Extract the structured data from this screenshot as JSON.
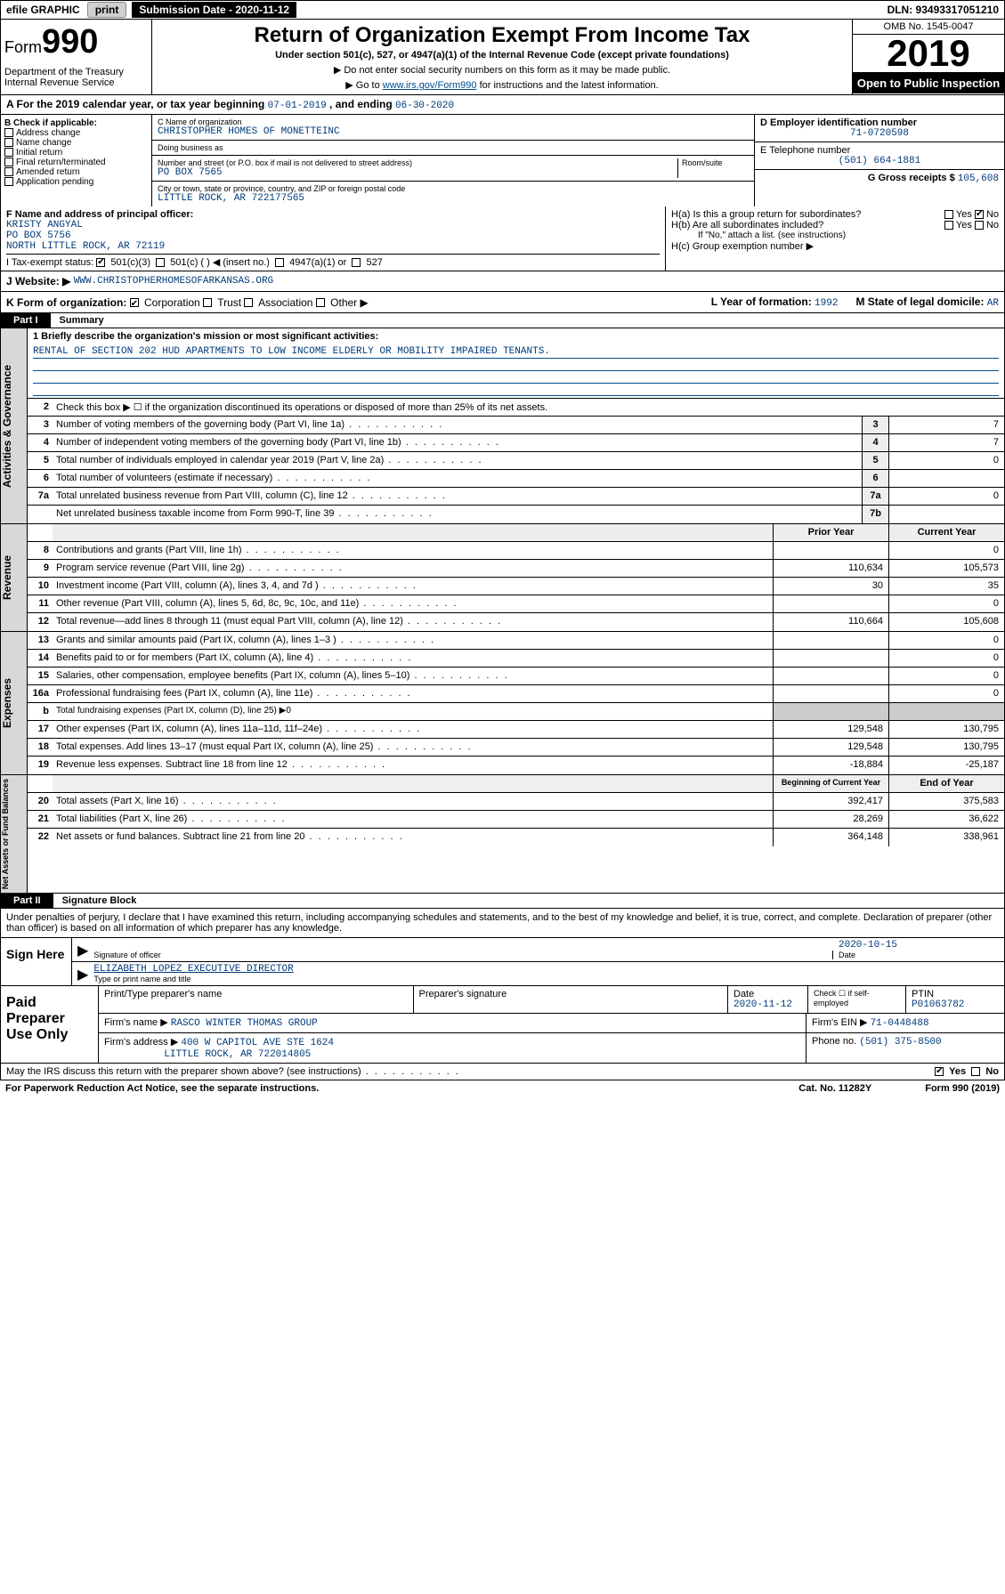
{
  "topbar": {
    "efile": "efile GRAPHIC",
    "print": "print",
    "submission": "Submission Date - 2020-11-12",
    "dln": "DLN: 93493317051210"
  },
  "header": {
    "form_prefix": "Form",
    "form_number": "990",
    "title": "Return of Organization Exempt From Income Tax",
    "subtitle": "Under section 501(c), 527, or 4947(a)(1) of the Internal Revenue Code (except private foundations)",
    "note1": "▶ Do not enter social security numbers on this form as it may be made public.",
    "note2_pre": "▶ Go to ",
    "note2_link": "www.irs.gov/Form990",
    "note2_post": " for instructions and the latest information.",
    "dept": "Department of the Treasury\nInternal Revenue Service",
    "omb": "OMB No. 1545-0047",
    "year": "2019",
    "open": "Open to Public Inspection"
  },
  "rowA": {
    "text_pre": "A For the 2019 calendar year, or tax year beginning ",
    "begin": "07-01-2019",
    "mid": " , and ending ",
    "end": "06-30-2020"
  },
  "colB": {
    "label": "B Check if applicable:",
    "opts": [
      "Address change",
      "Name change",
      "Initial return",
      "Final return/terminated",
      "Amended return",
      "Application pending"
    ]
  },
  "colC": {
    "name_lbl": "C Name of organization",
    "name": "CHRISTOPHER HOMES OF MONETTEINC",
    "dba_lbl": "Doing business as",
    "dba": "",
    "addr_lbl": "Number and street (or P.O. box if mail is not delivered to street address)",
    "room_lbl": "Room/suite",
    "addr": "PO BOX 7565",
    "city_lbl": "City or town, state or province, country, and ZIP or foreign postal code",
    "city": "LITTLE ROCK, AR  722177565"
  },
  "colDE": {
    "d_lbl": "D Employer identification number",
    "d_val": "71-0720598",
    "e_lbl": "E Telephone number",
    "e_val": "(501) 664-1881",
    "g_lbl": "G Gross receipts $ ",
    "g_val": "105,608"
  },
  "rowF": {
    "lbl": "F Name and address of principal officer:",
    "name": "KRISTY ANGYAL",
    "addr1": "PO BOX 5756",
    "addr2": "NORTH LITTLE ROCK, AR  72119"
  },
  "rowH": {
    "a": "H(a)  Is this a group return for subordinates?",
    "b": "H(b)  Are all subordinates included?",
    "b_note": "If \"No,\" attach a list. (see instructions)",
    "c": "H(c)  Group exemption number ▶",
    "yes": "Yes",
    "no": "No"
  },
  "rowI": {
    "lbl": "I   Tax-exempt status:",
    "o1": "501(c)(3)",
    "o2": "501(c) (  ) ◀ (insert no.)",
    "o3": "4947(a)(1) or",
    "o4": "527"
  },
  "rowJ": {
    "lbl": "J   Website: ▶",
    "val": "WWW.CHRISTOPHERHOMESOFARKANSAS.ORG"
  },
  "rowK": {
    "lbl": "K Form of organization:",
    "o1": "Corporation",
    "o2": "Trust",
    "o3": "Association",
    "o4": "Other ▶",
    "l": "L Year of formation: ",
    "l_val": "1992",
    "m": "M State of legal domicile: ",
    "m_val": "AR"
  },
  "parts": {
    "p1": "Part I",
    "p1t": "Summary",
    "p2": "Part II",
    "p2t": "Signature Block"
  },
  "summary": {
    "l1_lbl": "1  Briefly describe the organization's mission or most significant activities:",
    "l1_val": "RENTAL OF SECTION 202 HUD APARTMENTS TO LOW INCOME ELDERLY OR MOBILITY IMPAIRED TENANTS.",
    "l2": "Check this box ▶ ☐  if the organization discontinued its operations or disposed of more than 25% of its net assets.",
    "rows_gov": [
      {
        "n": "3",
        "t": "Number of voting members of the governing body (Part VI, line 1a)",
        "box": "3",
        "v": "7"
      },
      {
        "n": "4",
        "t": "Number of independent voting members of the governing body (Part VI, line 1b)",
        "box": "4",
        "v": "7"
      },
      {
        "n": "5",
        "t": "Total number of individuals employed in calendar year 2019 (Part V, line 2a)",
        "box": "5",
        "v": "0"
      },
      {
        "n": "6",
        "t": "Total number of volunteers (estimate if necessary)",
        "box": "6",
        "v": ""
      },
      {
        "n": "7a",
        "t": "Total unrelated business revenue from Part VIII, column (C), line 12",
        "box": "7a",
        "v": "0"
      },
      {
        "n": "",
        "t": "Net unrelated business taxable income from Form 990-T, line 39",
        "box": "7b",
        "v": ""
      }
    ],
    "col_prior": "Prior Year",
    "col_curr": "Current Year",
    "rows_rev": [
      {
        "n": "8",
        "t": "Contributions and grants (Part VIII, line 1h)",
        "p": "",
        "c": "0"
      },
      {
        "n": "9",
        "t": "Program service revenue (Part VIII, line 2g)",
        "p": "110,634",
        "c": "105,573"
      },
      {
        "n": "10",
        "t": "Investment income (Part VIII, column (A), lines 3, 4, and 7d )",
        "p": "30",
        "c": "35"
      },
      {
        "n": "11",
        "t": "Other revenue (Part VIII, column (A), lines 5, 6d, 8c, 9c, 10c, and 11e)",
        "p": "",
        "c": "0"
      },
      {
        "n": "12",
        "t": "Total revenue—add lines 8 through 11 (must equal Part VIII, column (A), line 12)",
        "p": "110,664",
        "c": "105,608"
      }
    ],
    "rows_exp": [
      {
        "n": "13",
        "t": "Grants and similar amounts paid (Part IX, column (A), lines 1–3 )",
        "p": "",
        "c": "0"
      },
      {
        "n": "14",
        "t": "Benefits paid to or for members (Part IX, column (A), line 4)",
        "p": "",
        "c": "0"
      },
      {
        "n": "15",
        "t": "Salaries, other compensation, employee benefits (Part IX, column (A), lines 5–10)",
        "p": "",
        "c": "0"
      },
      {
        "n": "16a",
        "t": "Professional fundraising fees (Part IX, column (A), line 11e)",
        "p": "",
        "c": "0"
      },
      {
        "n": "b",
        "t": "Total fundraising expenses (Part IX, column (D), line 25) ▶0",
        "p": "—",
        "c": "—"
      },
      {
        "n": "17",
        "t": "Other expenses (Part IX, column (A), lines 11a–11d, 11f–24e)",
        "p": "129,548",
        "c": "130,795"
      },
      {
        "n": "18",
        "t": "Total expenses. Add lines 13–17 (must equal Part IX, column (A), line 25)",
        "p": "129,548",
        "c": "130,795"
      },
      {
        "n": "19",
        "t": "Revenue less expenses. Subtract line 18 from line 12",
        "p": "-18,884",
        "c": "-25,187"
      }
    ],
    "col_begin": "Beginning of Current Year",
    "col_end": "End of Year",
    "rows_net": [
      {
        "n": "20",
        "t": "Total assets (Part X, line 16)",
        "p": "392,417",
        "c": "375,583"
      },
      {
        "n": "21",
        "t": "Total liabilities (Part X, line 26)",
        "p": "28,269",
        "c": "36,622"
      },
      {
        "n": "22",
        "t": "Net assets or fund balances. Subtract line 21 from line 20",
        "p": "364,148",
        "c": "338,961"
      }
    ],
    "vtabs": {
      "gov": "Activities & Governance",
      "rev": "Revenue",
      "exp": "Expenses",
      "net": "Net Assets or Fund Balances"
    }
  },
  "sig": {
    "decl": "Under penalties of perjury, I declare that I have examined this return, including accompanying schedules and statements, and to the best of my knowledge and belief, it is true, correct, and complete. Declaration of preparer (other than officer) is based on all information of which preparer has any knowledge.",
    "sign_here": "Sign Here",
    "sig_lbl": "Signature of officer",
    "date_lbl": "Date",
    "date_val": "2020-10-15",
    "name_val": "ELIZABETH LOPEZ  EXECUTIVE DIRECTOR",
    "name_lbl": "Type or print name and title"
  },
  "paid": {
    "label": "Paid Preparer Use Only",
    "h1": "Print/Type preparer's name",
    "h2": "Preparer's signature",
    "h3": "Date",
    "date": "2020-11-12",
    "h4": "Check ☐ if self-employed",
    "h5": "PTIN",
    "ptin": "P01063782",
    "firm_lbl": "Firm's name   ▶",
    "firm": "RASCO WINTER THOMAS GROUP",
    "ein_lbl": "Firm's EIN ▶",
    "ein": "71-0448488",
    "addr_lbl": "Firm's address ▶",
    "addr1": "400 W CAPITOL AVE STE 1624",
    "addr2": "LITTLE ROCK, AR  722014805",
    "phone_lbl": "Phone no. ",
    "phone": "(501) 375-8500"
  },
  "footer": {
    "q": "May the IRS discuss this return with the preparer shown above? (see instructions)",
    "yes": "Yes",
    "no": "No",
    "pra": "For Paperwork Reduction Act Notice, see the separate instructions.",
    "cat": "Cat. No. 11282Y",
    "form": "Form 990 (2019)"
  }
}
